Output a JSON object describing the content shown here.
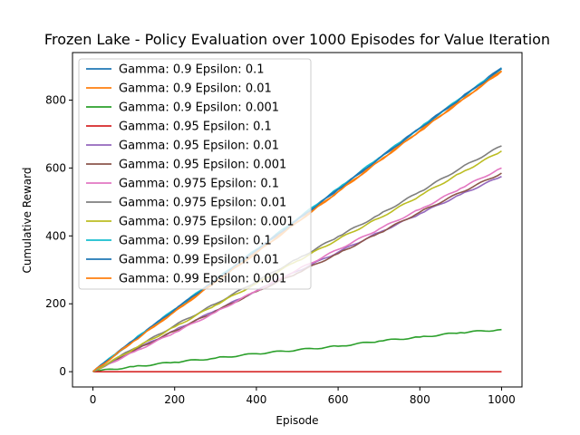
{
  "chart_data": {
    "type": "line",
    "title": "Frozen Lake - Policy Evaluation over 1000 Episodes for Value Iteration",
    "xlabel": "Episode",
    "ylabel": "Cumulative Reward",
    "xlim": [
      -50,
      1050
    ],
    "ylim": [
      -45,
      940
    ],
    "xticks": [
      0,
      200,
      400,
      600,
      800,
      1000
    ],
    "yticks": [
      0,
      200,
      400,
      600,
      800
    ],
    "grid": false,
    "legend_position": "top-left",
    "x": [
      0,
      100,
      200,
      300,
      400,
      500,
      600,
      700,
      800,
      900,
      1000
    ],
    "series": [
      {
        "name": "Gamma: 0.9 Epsilon: 0.1",
        "color": "#1f77b4",
        "values": [
          0,
          93,
          182,
          269,
          357,
          448,
          537,
          628,
          718,
          806,
          895
        ]
      },
      {
        "name": "Gamma: 0.9 Epsilon: 0.01",
        "color": "#ff7f0e",
        "values": [
          0,
          91,
          178,
          265,
          352,
          441,
          530,
          620,
          710,
          798,
          885
        ]
      },
      {
        "name": "Gamma: 0.9 Epsilon: 0.001",
        "color": "#2ca02c",
        "values": [
          0,
          15,
          28,
          40,
          53,
          64,
          75,
          90,
          102,
          115,
          124
        ]
      },
      {
        "name": "Gamma: 0.95 Epsilon: 0.1",
        "color": "#d62728",
        "values": [
          0,
          0,
          0,
          0,
          0,
          0,
          0,
          0,
          0,
          0,
          0
        ]
      },
      {
        "name": "Gamma: 0.95 Epsilon: 0.01",
        "color": "#9467bd",
        "values": [
          0,
          62,
          122,
          180,
          238,
          296,
          352,
          410,
          465,
          522,
          575
        ]
      },
      {
        "name": "Gamma: 0.95 Epsilon: 0.001",
        "color": "#8c564b",
        "values": [
          0,
          62,
          120,
          178,
          236,
          290,
          348,
          408,
          470,
          528,
          585
        ]
      },
      {
        "name": "Gamma: 0.975 Epsilon: 0.1",
        "color": "#e377c2",
        "values": [
          0,
          58,
          115,
          175,
          238,
          300,
          360,
          420,
          478,
          540,
          600
        ]
      },
      {
        "name": "Gamma: 0.975 Epsilon: 0.01",
        "color": "#7f7f7f",
        "values": [
          0,
          68,
          136,
          200,
          266,
          332,
          398,
          462,
          530,
          600,
          665
        ]
      },
      {
        "name": "Gamma: 0.975 Epsilon: 0.001",
        "color": "#bcbd22",
        "values": [
          0,
          67,
          132,
          196,
          260,
          326,
          390,
          452,
          518,
          585,
          650
        ]
      },
      {
        "name": "Gamma: 0.99 Epsilon: 0.1",
        "color": "#17becf",
        "values": [
          0,
          94,
          184,
          271,
          360,
          450,
          540,
          630,
          718,
          806,
          893
        ]
      },
      {
        "name": "Gamma: 0.99 Epsilon: 0.01",
        "color": "#1f77b4",
        "values": [
          0,
          93,
          183,
          270,
          358,
          447,
          537,
          628,
          717,
          805,
          892
        ]
      },
      {
        "name": "Gamma: 0.99 Epsilon: 0.001",
        "color": "#ff7f0e",
        "values": [
          0,
          90,
          177,
          264,
          350,
          440,
          530,
          620,
          708,
          797,
          886
        ]
      }
    ]
  }
}
